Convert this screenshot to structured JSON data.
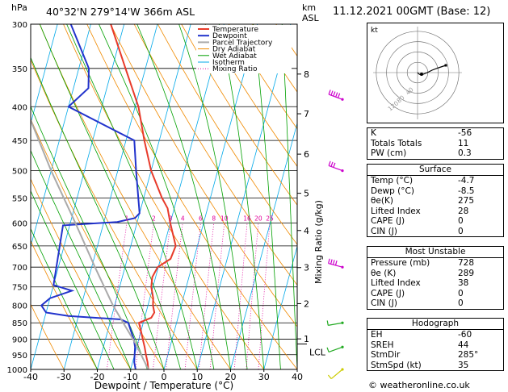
{
  "header": {
    "units_p": "hPa",
    "location": "40°32'N  279°14'W  366m  ASL",
    "units_km": "km",
    "units_asl": "ASL",
    "datetime": "11.12.2021  00GMT  (Base: 12)"
  },
  "legend": [
    "Temperature",
    "Dewpoint",
    "Parcel Trajectory",
    "Dry Adiabat",
    "Wet Adiabat",
    "Isotherm",
    "Mixing Ratio"
  ],
  "colors": {
    "temperature": "#e83a2a",
    "dewpoint": "#2233cc",
    "parcel": "#aaaaaa",
    "dry_adiabat": "#f08a00",
    "wet_adiabat": "#00a000",
    "isotherm": "#00a8e8",
    "mixing_ratio": "#e0009a",
    "wind": "#cc00cc"
  },
  "chart_data": {
    "type": "line",
    "title": "",
    "xlabel": "Dewpoint / Temperature (°C)",
    "ylabel": "Mixing Ratio (g/kg)",
    "xlim": [
      -40,
      40
    ],
    "ylim_hpa": [
      1000,
      300
    ],
    "pressure_ticks": [
      300,
      350,
      400,
      450,
      500,
      550,
      600,
      650,
      700,
      750,
      800,
      850,
      900,
      950,
      1000
    ],
    "temp_ticks": [
      -40,
      -30,
      -20,
      -10,
      0,
      10,
      20,
      30,
      40
    ],
    "km_ticks": [
      {
        "label": "8",
        "p": 357
      },
      {
        "label": "7",
        "p": 410
      },
      {
        "label": "6",
        "p": 472
      },
      {
        "label": "5",
        "p": 541
      },
      {
        "label": "4",
        "p": 616
      },
      {
        "label": "3",
        "p": 701
      },
      {
        "label": "2",
        "p": 795
      },
      {
        "label": "1",
        "p": 899
      }
    ],
    "lcl": {
      "label": "LCL",
      "p": 915
    },
    "mixing_ratio_labels": [
      "1",
      "2",
      "3",
      "4",
      "6",
      "8",
      "10",
      "16",
      "20",
      "25"
    ],
    "series": [
      {
        "name": "Temperature",
        "points": [
          [
            1000,
            -4.7
          ],
          [
            975,
            -5.5
          ],
          [
            950,
            -6.6
          ],
          [
            925,
            -7.6
          ],
          [
            900,
            -8.8
          ],
          [
            875,
            -10.0
          ],
          [
            850,
            -11.3
          ],
          [
            835,
            -8.0
          ],
          [
            820,
            -7.5
          ],
          [
            800,
            -8.5
          ],
          [
            780,
            -9.0
          ],
          [
            750,
            -10.5
          ],
          [
            725,
            -11.0
          ],
          [
            700,
            -10.2
          ],
          [
            680,
            -7.0
          ],
          [
            650,
            -6.5
          ],
          [
            600,
            -10.0
          ],
          [
            570,
            -12.0
          ],
          [
            550,
            -14.5
          ],
          [
            500,
            -20.0
          ],
          [
            450,
            -24.5
          ],
          [
            400,
            -29.0
          ],
          [
            350,
            -36.0
          ],
          [
            300,
            -44.0
          ]
        ]
      },
      {
        "name": "Dewpoint",
        "points": [
          [
            1000,
            -8.5
          ],
          [
            975,
            -9.5
          ],
          [
            950,
            -10.0
          ],
          [
            925,
            -10.5
          ],
          [
            900,
            -11.5
          ],
          [
            875,
            -13.0
          ],
          [
            850,
            -14.5
          ],
          [
            840,
            -17.0
          ],
          [
            830,
            -33.0
          ],
          [
            820,
            -40.0
          ],
          [
            800,
            -42.0
          ],
          [
            780,
            -40.0
          ],
          [
            760,
            -34.0
          ],
          [
            745,
            -40.0
          ],
          [
            605,
            -42.0
          ],
          [
            598,
            -26.0
          ],
          [
            590,
            -21.0
          ],
          [
            580,
            -20.0
          ],
          [
            500,
            -24.5
          ],
          [
            450,
            -27.5
          ],
          [
            400,
            -50.0
          ],
          [
            375,
            -45.5
          ],
          [
            350,
            -47.0
          ],
          [
            300,
            -56.0
          ]
        ]
      },
      {
        "name": "Parcel Trajectory",
        "points": [
          [
            1000,
            -4.7
          ],
          [
            915,
            -10.5
          ],
          [
            850,
            -16.0
          ],
          [
            800,
            -20.5
          ],
          [
            700,
            -29.0
          ],
          [
            600,
            -38.5
          ],
          [
            500,
            -50.0
          ],
          [
            400,
            -63.0
          ],
          [
            300,
            -80.0
          ]
        ]
      }
    ]
  },
  "wind_barbs": [
    {
      "p": 390,
      "dir": 290,
      "kt": 45,
      "color": "#cc00cc"
    },
    {
      "p": 500,
      "dir": 290,
      "kt": 30,
      "color": "#cc00cc"
    },
    {
      "p": 700,
      "dir": 285,
      "kt": 40,
      "color": "#cc00cc"
    },
    {
      "p": 850,
      "dir": 260,
      "kt": 10,
      "color": "#22aa22"
    },
    {
      "p": 925,
      "dir": 250,
      "kt": 10,
      "color": "#22aa22"
    },
    {
      "p": 1000,
      "dir": 230,
      "kt": 10,
      "color": "#cccc00"
    }
  ],
  "hodograph": {
    "label": "kt",
    "ring_labels": [
      "40",
      "80",
      "120"
    ],
    "points": [
      [
        0,
        0
      ],
      [
        1.5,
        -1.5
      ],
      [
        4,
        -3
      ],
      [
        7,
        -2
      ],
      [
        12,
        0
      ],
      [
        18,
        3
      ],
      [
        26,
        6
      ],
      [
        35,
        9
      ]
    ]
  },
  "indices_top": [
    {
      "label": "K",
      "value": "-56"
    },
    {
      "label": "Totals Totals",
      "value": "11"
    },
    {
      "label": "PW (cm)",
      "value": "0.3"
    }
  ],
  "surface": {
    "title": "Surface",
    "rows": [
      {
        "label": "Temp (°C)",
        "value": "-4.7"
      },
      {
        "label": "Dewp (°C)",
        "value": "-8.5"
      },
      {
        "label": "θe(K)",
        "value": "275"
      },
      {
        "label": "Lifted Index",
        "value": "28"
      },
      {
        "label": "CAPE (J)",
        "value": "0"
      },
      {
        "label": "CIN (J)",
        "value": "0"
      }
    ]
  },
  "most_unstable": {
    "title": "Most Unstable",
    "rows": [
      {
        "label": "Pressure (mb)",
        "value": "728"
      },
      {
        "label": "θe (K)",
        "value": "289"
      },
      {
        "label": "Lifted Index",
        "value": "38"
      },
      {
        "label": "CAPE (J)",
        "value": "0"
      },
      {
        "label": "CIN (J)",
        "value": "0"
      }
    ]
  },
  "hodograph_table": {
    "title": "Hodograph",
    "rows": [
      {
        "label": "EH",
        "value": "-60"
      },
      {
        "label": "SREH",
        "value": "44"
      },
      {
        "label": "StmDir",
        "value": "285°"
      },
      {
        "label": "StmSpd (kt)",
        "value": "35"
      }
    ]
  },
  "copyright": "© weatheronline.co.uk"
}
